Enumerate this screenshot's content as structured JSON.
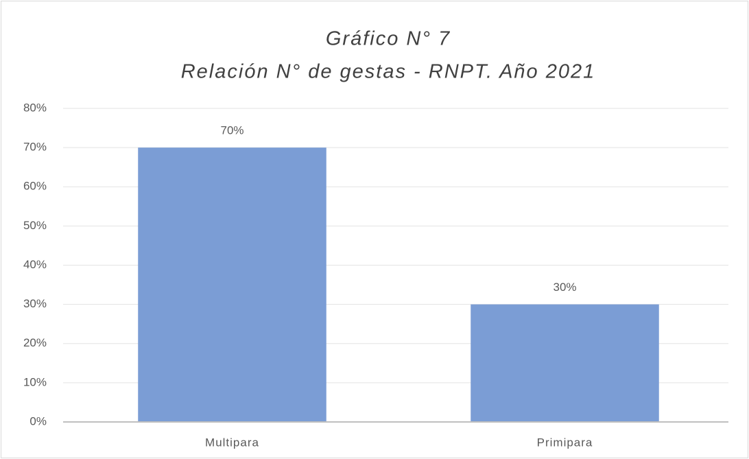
{
  "chart_data": {
    "type": "bar",
    "title": "Gráfico N° 7",
    "subtitle": "Relación N° de gestas - RNPT. Año 2021",
    "categories": [
      "Multipara",
      "Primipara"
    ],
    "values": [
      70,
      30
    ],
    "value_labels": [
      "70%",
      "30%"
    ],
    "color": "#7b9dd5",
    "ylim": [
      0,
      80
    ],
    "yticks": [
      {
        "value": 0,
        "label": "0%"
      },
      {
        "value": 10,
        "label": "10%"
      },
      {
        "value": 20,
        "label": "20%"
      },
      {
        "value": 30,
        "label": "30%"
      },
      {
        "value": 40,
        "label": "40%"
      },
      {
        "value": 50,
        "label": "50%"
      },
      {
        "value": 60,
        "label": "60%"
      },
      {
        "value": 70,
        "label": "70%"
      },
      {
        "value": 80,
        "label": "80%"
      }
    ],
    "grid": true
  }
}
